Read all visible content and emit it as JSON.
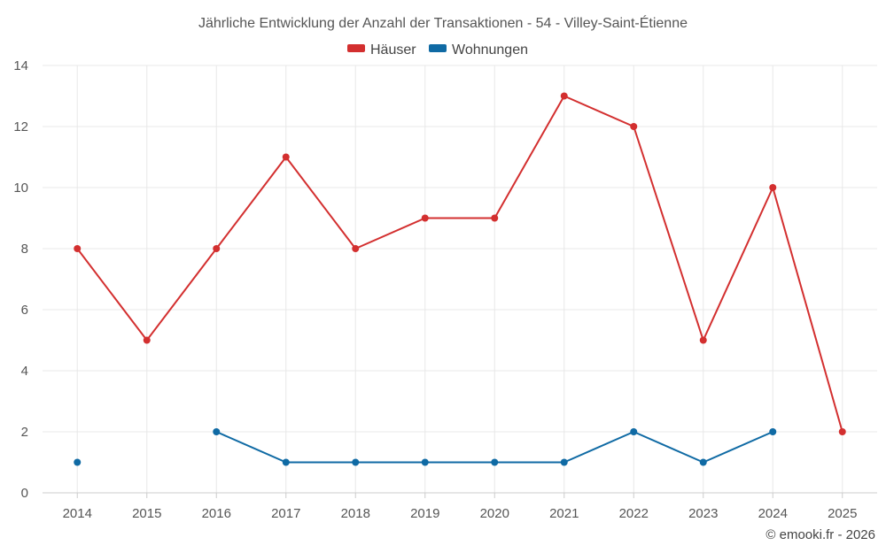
{
  "chart_data": {
    "type": "line",
    "title": "Jährliche Entwicklung der Anzahl der Transaktionen - 54 - Villey-Saint-Étienne",
    "categories": [
      "2014",
      "2015",
      "2016",
      "2017",
      "2018",
      "2019",
      "2020",
      "2021",
      "2022",
      "2023",
      "2024",
      "2025"
    ],
    "ylim": [
      0,
      14
    ],
    "yticks": [
      0,
      2,
      4,
      6,
      8,
      10,
      12,
      14
    ],
    "grid": true,
    "legend_position": "top-center",
    "series": [
      {
        "name": "Häuser",
        "color": "#d32f2f",
        "values": [
          8,
          5,
          8,
          11,
          8,
          9,
          9,
          13,
          12,
          5,
          10,
          2
        ]
      },
      {
        "name": "Wohnungen",
        "color": "#0f6aa4",
        "values": [
          1,
          null,
          2,
          1,
          1,
          1,
          1,
          1,
          2,
          1,
          2,
          null
        ]
      }
    ]
  },
  "credit": "© emooki.fr - 2026"
}
